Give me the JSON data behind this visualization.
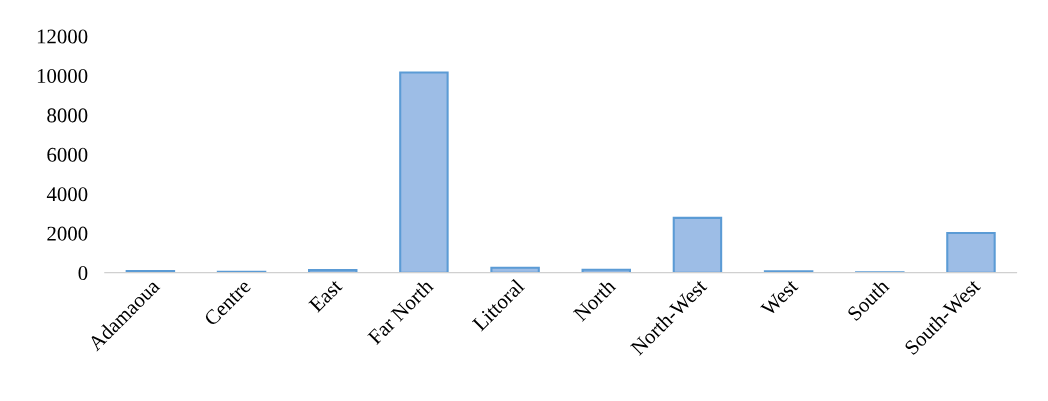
{
  "chart_data": {
    "type": "bar",
    "categories": [
      "Adamaoua",
      "Centre",
      "East",
      "Far North",
      "Littoral",
      "North",
      "North-West",
      "West",
      "South",
      "South-West"
    ],
    "values": [
      80,
      40,
      130,
      10150,
      250,
      150,
      2780,
      70,
      20,
      2010
    ],
    "color": "#9dbde6",
    "ylim": [
      0,
      12000
    ],
    "yticks": [
      0,
      2000,
      4000,
      6000,
      8000,
      10000,
      12000
    ],
    "grid": false
  }
}
